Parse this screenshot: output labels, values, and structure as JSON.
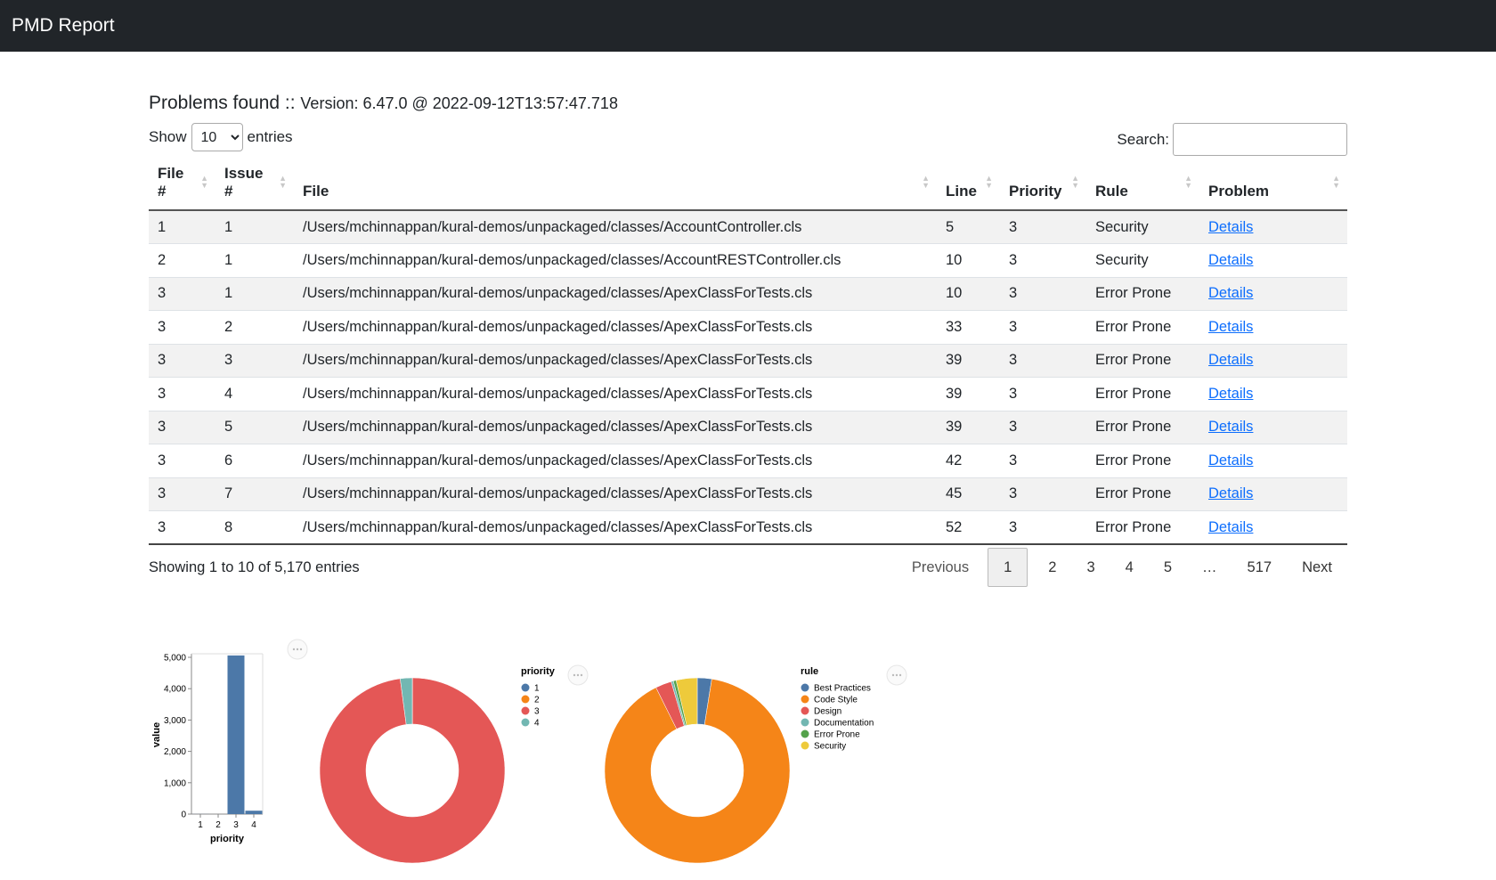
{
  "navbar": {
    "brand": "PMD Report"
  },
  "header": {
    "title": "Problems found :: ",
    "version": "Version: 6.47.0 @ 2022-09-12T13:57:47.718"
  },
  "length": {
    "show_label": "Show",
    "value": "10",
    "entries_label": "entries"
  },
  "search": {
    "label": "Search:",
    "value": ""
  },
  "table": {
    "columns": {
      "file_num": [
        "File",
        "#"
      ],
      "issue_num": [
        "Issue",
        "#"
      ],
      "file": "File",
      "line": "Line",
      "priority": "Priority",
      "rule": "Rule",
      "problem": "Problem"
    },
    "rows": [
      {
        "file_num": "1",
        "issue_num": "1",
        "file": "/Users/mchinnappan/kural-demos/unpackaged/classes/AccountController.cls",
        "line": "5",
        "priority": "3",
        "rule": "Security",
        "problem": "Details"
      },
      {
        "file_num": "2",
        "issue_num": "1",
        "file": "/Users/mchinnappan/kural-demos/unpackaged/classes/AccountRESTController.cls",
        "line": "10",
        "priority": "3",
        "rule": "Security",
        "problem": "Details"
      },
      {
        "file_num": "3",
        "issue_num": "1",
        "file": "/Users/mchinnappan/kural-demos/unpackaged/classes/ApexClassForTests.cls",
        "line": "10",
        "priority": "3",
        "rule": "Error Prone",
        "problem": "Details"
      },
      {
        "file_num": "3",
        "issue_num": "2",
        "file": "/Users/mchinnappan/kural-demos/unpackaged/classes/ApexClassForTests.cls",
        "line": "33",
        "priority": "3",
        "rule": "Error Prone",
        "problem": "Details"
      },
      {
        "file_num": "3",
        "issue_num": "3",
        "file": "/Users/mchinnappan/kural-demos/unpackaged/classes/ApexClassForTests.cls",
        "line": "39",
        "priority": "3",
        "rule": "Error Prone",
        "problem": "Details"
      },
      {
        "file_num": "3",
        "issue_num": "4",
        "file": "/Users/mchinnappan/kural-demos/unpackaged/classes/ApexClassForTests.cls",
        "line": "39",
        "priority": "3",
        "rule": "Error Prone",
        "problem": "Details"
      },
      {
        "file_num": "3",
        "issue_num": "5",
        "file": "/Users/mchinnappan/kural-demos/unpackaged/classes/ApexClassForTests.cls",
        "line": "39",
        "priority": "3",
        "rule": "Error Prone",
        "problem": "Details"
      },
      {
        "file_num": "3",
        "issue_num": "6",
        "file": "/Users/mchinnappan/kural-demos/unpackaged/classes/ApexClassForTests.cls",
        "line": "42",
        "priority": "3",
        "rule": "Error Prone",
        "problem": "Details"
      },
      {
        "file_num": "3",
        "issue_num": "7",
        "file": "/Users/mchinnappan/kural-demos/unpackaged/classes/ApexClassForTests.cls",
        "line": "45",
        "priority": "3",
        "rule": "Error Prone",
        "problem": "Details"
      },
      {
        "file_num": "3",
        "issue_num": "8",
        "file": "/Users/mchinnappan/kural-demos/unpackaged/classes/ApexClassForTests.cls",
        "line": "52",
        "priority": "3",
        "rule": "Error Prone",
        "problem": "Details"
      }
    ]
  },
  "info": "Showing 1 to 10 of 5,170 entries",
  "pagination": {
    "previous": "Previous",
    "pages": [
      "1",
      "2",
      "3",
      "4",
      "5",
      "…",
      "517"
    ],
    "current": "1",
    "next": "Next"
  },
  "colors": {
    "p1": "#4c78a8",
    "p2": "#f58518",
    "p3": "#e45756",
    "p4": "#72b7b2",
    "errorprone": "#54a24b",
    "security": "#eeca3b"
  },
  "chart_data": [
    {
      "type": "bar",
      "categories": [
        "1",
        "2",
        "3",
        "4"
      ],
      "values": [
        2,
        0,
        5060,
        108
      ],
      "xlabel": "priority",
      "ylabel": "value",
      "ylim": [
        0,
        5000
      ],
      "yticks": [
        "0",
        "1,000",
        "2,000",
        "3,000",
        "4,000",
        "5,000"
      ],
      "ytick_values": [
        0,
        1000,
        2000,
        3000,
        4000,
        5000
      ]
    },
    {
      "type": "pie",
      "legend_title": "priority",
      "labels": [
        "1",
        "2",
        "3",
        "4"
      ],
      "values": [
        2,
        0,
        5060,
        108
      ],
      "colors": [
        "#4c78a8",
        "#f58518",
        "#e45756",
        "#72b7b2"
      ]
    },
    {
      "type": "pie",
      "legend_title": "rule",
      "labels": [
        "Best Practices",
        "Code Style",
        "Design",
        "Documentation",
        "Error Prone",
        "Security"
      ],
      "values": [
        130,
        4660,
        145,
        20,
        25,
        190
      ],
      "colors": [
        "#4c78a8",
        "#f58518",
        "#e45756",
        "#72b7b2",
        "#54a24b",
        "#eeca3b"
      ]
    }
  ]
}
